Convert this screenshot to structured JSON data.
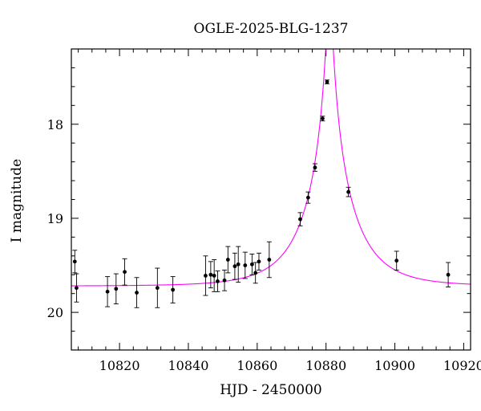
{
  "chart_data": {
    "type": "scatter",
    "title": "OGLE-2025-BLG-1237",
    "xlabel": "HJD - 2450000",
    "ylabel": "I magnitude",
    "xlim": [
      10806,
      10922
    ],
    "ylim": [
      20.4,
      17.2
    ],
    "y_inverted": true,
    "x_major_ticks": [
      10820,
      10840,
      10860,
      10880,
      10900,
      10920
    ],
    "x_tick_labels": [
      "10820",
      "10840",
      "10860",
      "10880",
      "10900",
      "10920"
    ],
    "y_major_ticks": [
      18,
      19,
      20
    ],
    "y_tick_labels": [
      "18",
      "19",
      "20"
    ],
    "x_minor_step": 4,
    "y_minor_step": 0.2,
    "grid": false,
    "colors": {
      "model": "#ff00ff",
      "points": "#000000"
    },
    "model": {
      "name": "",
      "type": "point-lens fit",
      "t0": 10881.0,
      "tE": 14.0,
      "u0": 0.06,
      "baseline_mag": 19.72
    },
    "points": [
      {
        "x": 10807.0,
        "y": 19.46,
        "err": 0.12
      },
      {
        "x": 10807.5,
        "y": 19.74,
        "err": 0.15
      },
      {
        "x": 10816.5,
        "y": 19.78,
        "err": 0.16
      },
      {
        "x": 10819.0,
        "y": 19.75,
        "err": 0.16
      },
      {
        "x": 10821.5,
        "y": 19.57,
        "err": 0.14
      },
      {
        "x": 10825.0,
        "y": 19.79,
        "err": 0.16
      },
      {
        "x": 10831.0,
        "y": 19.74,
        "err": 0.21
      },
      {
        "x": 10835.5,
        "y": 19.76,
        "err": 0.14
      },
      {
        "x": 10845.0,
        "y": 19.61,
        "err": 0.21
      },
      {
        "x": 10846.5,
        "y": 19.6,
        "err": 0.14
      },
      {
        "x": 10847.5,
        "y": 19.61,
        "err": 0.17
      },
      {
        "x": 10848.5,
        "y": 19.67,
        "err": 0.11
      },
      {
        "x": 10850.5,
        "y": 19.66,
        "err": 0.11
      },
      {
        "x": 10851.5,
        "y": 19.44,
        "err": 0.14
      },
      {
        "x": 10853.5,
        "y": 19.51,
        "err": 0.14
      },
      {
        "x": 10854.5,
        "y": 19.49,
        "err": 0.19
      },
      {
        "x": 10856.5,
        "y": 19.5,
        "err": 0.14
      },
      {
        "x": 10858.5,
        "y": 19.49,
        "err": 0.11
      },
      {
        "x": 10859.5,
        "y": 19.58,
        "err": 0.11
      },
      {
        "x": 10860.5,
        "y": 19.46,
        "err": 0.09
      },
      {
        "x": 10863.5,
        "y": 19.44,
        "err": 0.19
      },
      {
        "x": 10872.5,
        "y": 19.01,
        "err": 0.07
      },
      {
        "x": 10874.8,
        "y": 18.78,
        "err": 0.06
      },
      {
        "x": 10876.8,
        "y": 18.46,
        "err": 0.04
      },
      {
        "x": 10879.0,
        "y": 17.94,
        "err": 0.025
      },
      {
        "x": 10880.3,
        "y": 17.55,
        "err": 0.02
      },
      {
        "x": 10886.5,
        "y": 18.72,
        "err": 0.05
      },
      {
        "x": 10900.5,
        "y": 19.45,
        "err": 0.1
      },
      {
        "x": 10915.5,
        "y": 19.6,
        "err": 0.13
      }
    ]
  }
}
